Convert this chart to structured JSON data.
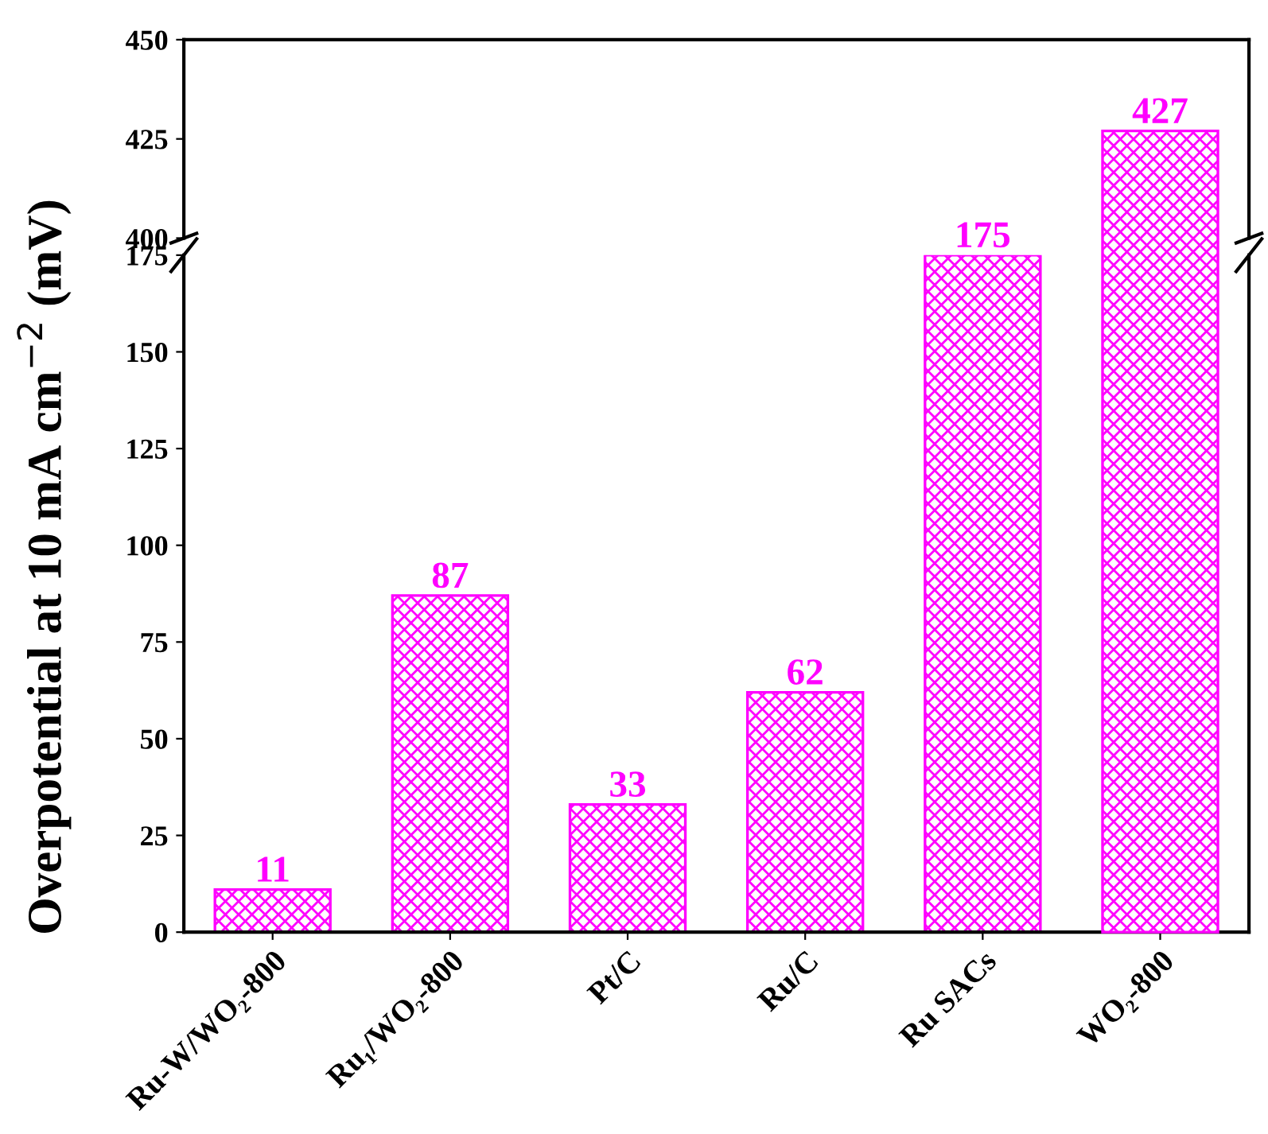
{
  "chart_data": [
    {
      "type": "bar",
      "ylabel": "Overpotential at 10 mA cm$^{−2}$ (mV)",
      "categories": [
        null,
        null,
        null,
        null,
        null,
        null
      ],
      "values": [
        null,
        null,
        null,
        null,
        null,
        427
      ],
      "color": "#ff00ff",
      "ylim": [
        400,
        450
      ],
      "yticks": [
        400,
        425,
        450
      ],
      "tick_labels": "y",
      "data_labels": true,
      "grid": false,
      "legend": false
    },
    {
      "type": "bar",
      "categories": [
        "Ru-W/WO₂-800",
        "Ru₁/WO₂-800",
        "Pt/C",
        "Ru/C",
        "Ru SACs",
        "WO₂-800"
      ],
      "values": [
        11,
        87,
        33,
        62,
        175,
        null
      ],
      "color": "#ff00ff",
      "ylim": [
        0,
        175
      ],
      "yticks": [
        0,
        25,
        50,
        75,
        100,
        125,
        150,
        175
      ],
      "data_labels": true,
      "grid": false,
      "legend": false
    }
  ]
}
